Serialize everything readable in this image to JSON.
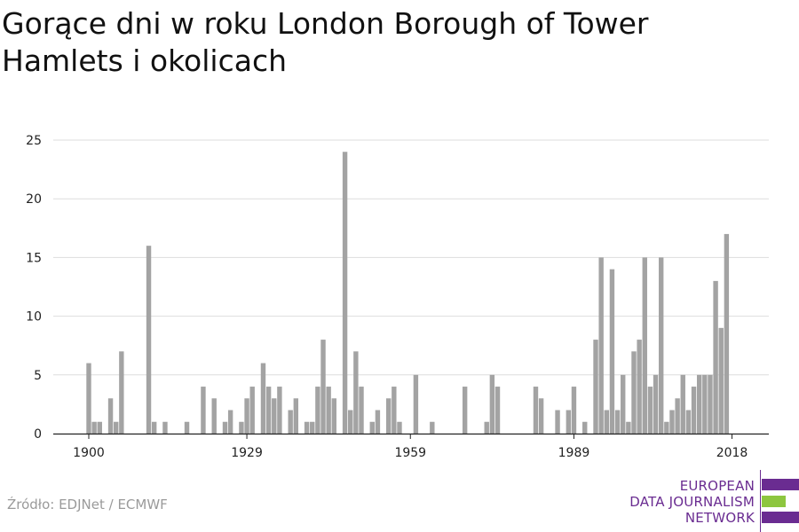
{
  "chart_data": {
    "type": "bar",
    "title": "Gorące dni w roku London Borough of Tower Hamlets i okolicach",
    "source": "Źródło: EDJNet / ECMWF",
    "x": [
      1900,
      1901,
      1902,
      1903,
      1904,
      1905,
      1906,
      1907,
      1908,
      1909,
      1910,
      1911,
      1912,
      1913,
      1914,
      1915,
      1916,
      1917,
      1918,
      1919,
      1920,
      1921,
      1922,
      1923,
      1924,
      1925,
      1926,
      1927,
      1928,
      1929,
      1930,
      1931,
      1932,
      1933,
      1934,
      1935,
      1936,
      1937,
      1938,
      1939,
      1940,
      1941,
      1942,
      1943,
      1944,
      1945,
      1946,
      1947,
      1948,
      1949,
      1950,
      1951,
      1952,
      1953,
      1954,
      1955,
      1956,
      1957,
      1958,
      1959,
      1960,
      1961,
      1962,
      1963,
      1964,
      1965,
      1966,
      1967,
      1968,
      1969,
      1970,
      1971,
      1972,
      1973,
      1974,
      1975,
      1976,
      1977,
      1978,
      1979,
      1980,
      1981,
      1982,
      1983,
      1984,
      1985,
      1986,
      1987,
      1988,
      1989,
      1990,
      1991,
      1992,
      1993,
      1994,
      1995,
      1996,
      1997,
      1998,
      1999,
      2000,
      2001,
      2002,
      2003,
      2004,
      2005,
      2006,
      2007,
      2008,
      2009,
      2010,
      2011,
      2012,
      2013,
      2014,
      2015,
      2016,
      2017,
      2018
    ],
    "values": [
      6,
      1,
      1,
      0,
      3,
      1,
      7,
      0,
      0,
      0,
      0,
      16,
      1,
      0,
      1,
      0,
      0,
      0,
      1,
      0,
      0,
      4,
      0,
      3,
      0,
      1,
      2,
      0,
      1,
      3,
      4,
      0,
      6,
      4,
      3,
      4,
      0,
      2,
      3,
      0,
      1,
      1,
      4,
      8,
      4,
      3,
      0,
      24,
      2,
      7,
      4,
      0,
      1,
      2,
      0,
      3,
      4,
      1,
      0,
      0,
      5,
      0,
      0,
      1,
      0,
      0,
      0,
      0,
      0,
      4,
      0,
      0,
      0,
      1,
      5,
      4,
      0,
      0,
      0,
      0,
      0,
      0,
      4,
      3,
      0,
      0,
      2,
      0,
      2,
      4,
      0,
      1,
      0,
      8,
      15,
      2,
      14,
      2,
      5,
      1,
      7,
      8,
      15,
      4,
      5,
      15,
      1,
      2,
      3,
      5,
      2,
      4,
      5,
      5,
      5,
      13,
      9,
      17,
      0
    ],
    "x_ticks": [
      "1900",
      "1929",
      "1959",
      "1989",
      "2018"
    ],
    "x_tick_years": [
      1900,
      1929,
      1959,
      1989,
      2018
    ],
    "y_ticks": [
      "0",
      "5",
      "10",
      "15",
      "20",
      "25"
    ],
    "ylim": [
      0,
      25
    ],
    "xlim": [
      1894,
      2024
    ],
    "grid": true,
    "legend": "none",
    "bar_color": "#a3a3a3",
    "grid_color": "#dddddd",
    "axis_color": "#222222"
  },
  "logo": {
    "lines": [
      "EUROPEAN",
      "DATA JOURNALISM",
      "NETWORK"
    ],
    "text_color": "#6a2c91",
    "bar_colors": [
      "#6a2c91",
      "#8dc63f",
      "#6a2c91"
    ],
    "divider_color": "#6a2c91"
  }
}
